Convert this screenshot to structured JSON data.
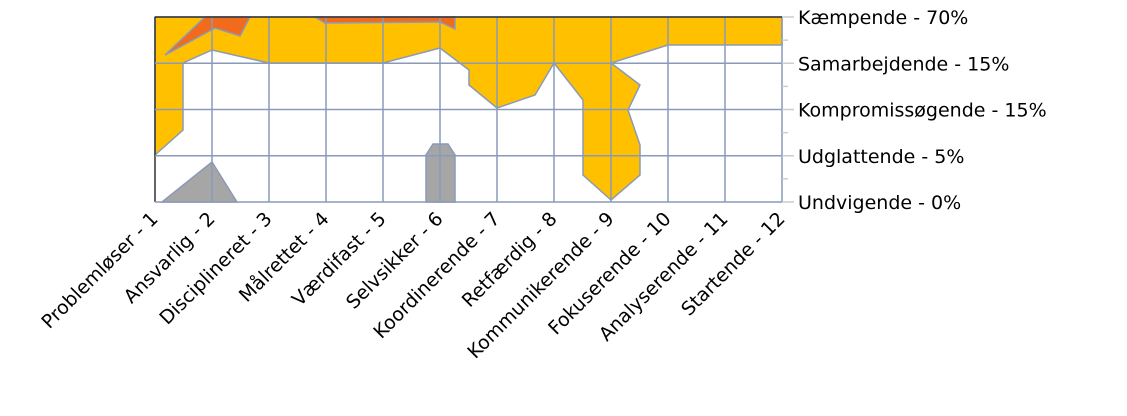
{
  "chart_data": {
    "type": "surface-contour",
    "categories": [
      "Problemløser - 1",
      "Ansvarlig - 2",
      "Disciplineret - 3",
      "Målrettet - 4",
      "Værdifast - 5",
      "Selvsikker - 6",
      "Koordinerende - 7",
      "Retfærdig - 8",
      "Kommunikerende - 9",
      "Fokuserende - 10",
      "Analyserende - 11",
      "Startende - 12"
    ],
    "y_categories": [
      "Kæmpende - 70%",
      "Samarbejdende - 15%",
      "Kompromissøgende - 15%",
      "Udglattende - 5%",
      "Undvigende - 0%"
    ],
    "grid": true
  }
}
